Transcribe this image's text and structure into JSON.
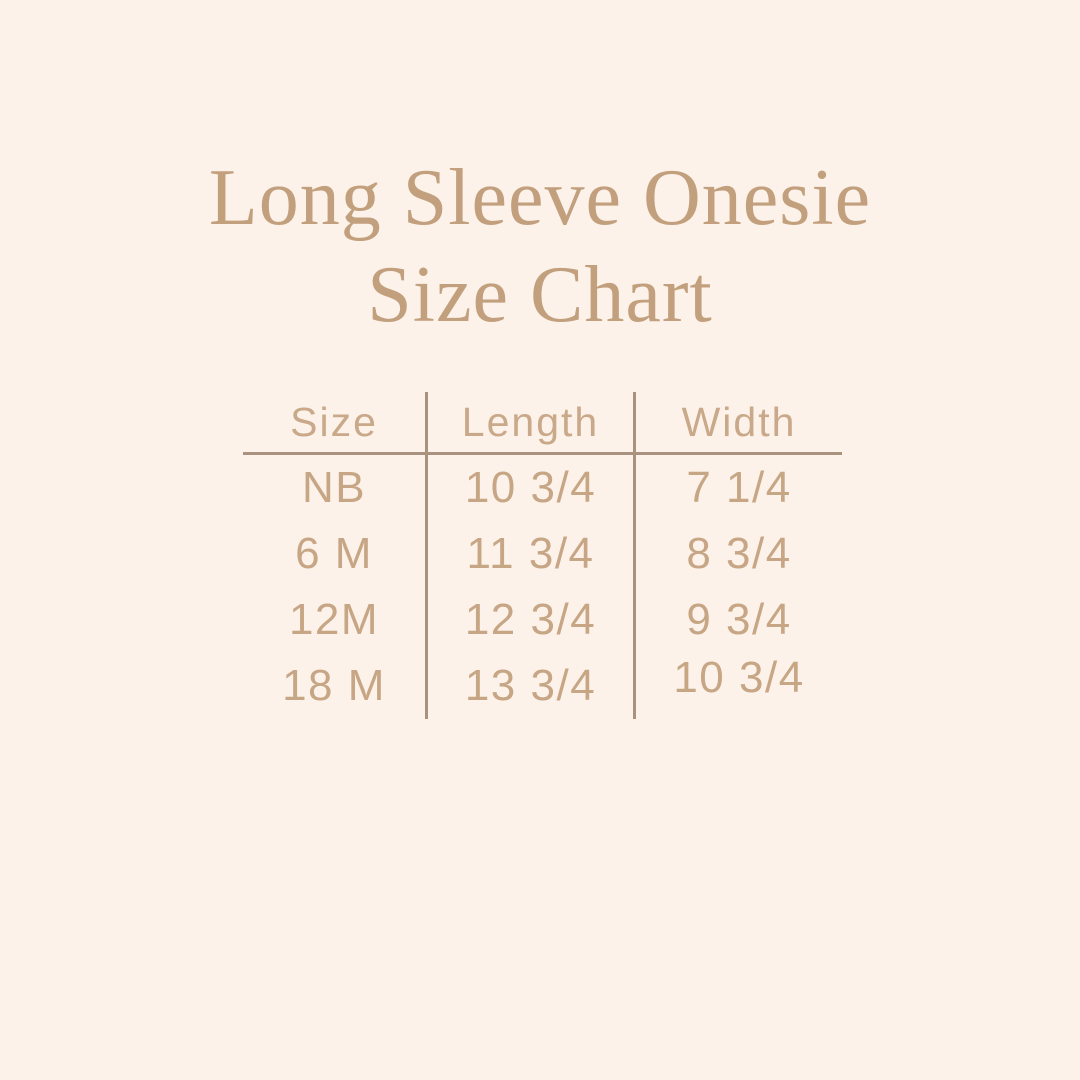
{
  "title": {
    "line1": "Long Sleeve Onesie",
    "line2": "Size Chart"
  },
  "table": {
    "headers": [
      "Size",
      "Length",
      "Width"
    ],
    "rows": [
      {
        "size": "NB",
        "length": "10 3/4",
        "width": "7 1/4"
      },
      {
        "size": "6 M",
        "length": "11 3/4",
        "width": "8 3/4"
      },
      {
        "size": "12M",
        "length": "12 3/4",
        "width": "9 3/4"
      },
      {
        "size": "18 M",
        "length": "13 3/4",
        "width": "10 3/4"
      }
    ]
  },
  "chart_data": {
    "type": "table",
    "title": "Long Sleeve Onesie Size Chart",
    "columns": [
      "Size",
      "Length",
      "Width"
    ],
    "rows": [
      [
        "NB",
        "10 3/4",
        "7 1/4"
      ],
      [
        "6 M",
        "11 3/4",
        "8 3/4"
      ],
      [
        "12M",
        "12 3/4",
        "9 3/4"
      ],
      [
        "18 M",
        "13 3/4",
        "10 3/4"
      ]
    ],
    "units": "inches"
  },
  "colors": {
    "background": "#fcf2e9",
    "title_text": "#c2a07e",
    "table_text": "#c7a685",
    "header_text": "#c9a98a",
    "rule_line": "#a9937f"
  }
}
